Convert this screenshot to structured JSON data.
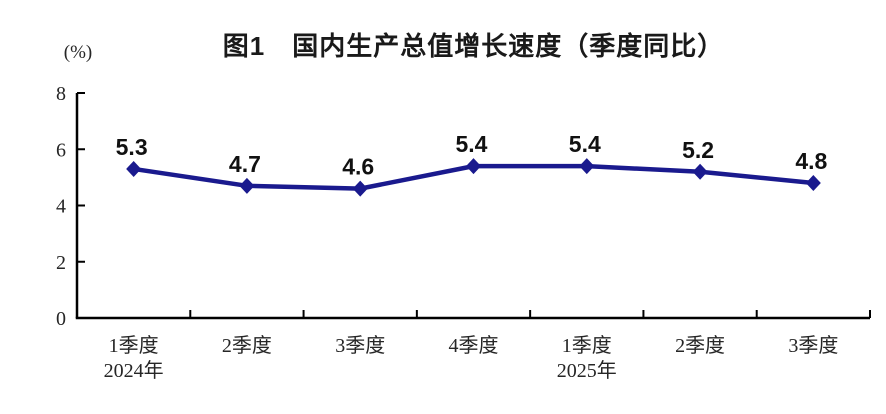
{
  "chart_data": {
    "type": "line",
    "title": "图1　国内生产总值增长速度（季度同比）",
    "unit": "(%)",
    "categories": [
      "1季度",
      "2季度",
      "3季度",
      "4季度",
      "1季度",
      "2季度",
      "3季度"
    ],
    "year_labels": [
      {
        "index": 0,
        "label": "2024年"
      },
      {
        "index": 4,
        "label": "2025年"
      }
    ],
    "series": [
      {
        "name": "国内生产总值增长速度",
        "values": [
          5.3,
          4.7,
          4.6,
          5.4,
          5.4,
          5.2,
          4.8
        ]
      }
    ],
    "value_labels": [
      "5.3",
      "4.7",
      "4.6",
      "5.4",
      "5.4",
      "5.2",
      "4.8"
    ],
    "ylim": [
      0,
      8
    ],
    "yticks": [
      0,
      2,
      4,
      6,
      8
    ],
    "ytick_labels": [
      "0",
      "2",
      "4",
      "6",
      "8"
    ],
    "grid": false,
    "legend": false,
    "marker": "diamond",
    "colors": {
      "line": "#1a1a8e",
      "marker": "#1a1a8e",
      "axis": "#000000",
      "tick_text": "#262626",
      "value_text": "#111111",
      "background": "#ffffff"
    }
  }
}
